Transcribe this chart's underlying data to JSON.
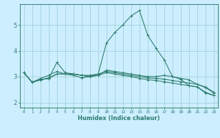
{
  "xlabel": "Humidex (Indice chaleur)",
  "x": [
    0,
    1,
    2,
    3,
    4,
    5,
    6,
    7,
    8,
    9,
    10,
    11,
    12,
    13,
    14,
    15,
    16,
    17,
    18,
    19,
    20,
    21,
    22,
    23
  ],
  "lines": [
    {
      "y": [
        3.15,
        2.78,
        2.88,
        2.93,
        3.1,
        3.1,
        3.1,
        3.05,
        3.05,
        3.1,
        4.3,
        4.7,
        5.0,
        5.35,
        5.55,
        4.6,
        4.1,
        3.65,
        3.0,
        2.93,
        2.88,
        2.7,
        2.58,
        2.37
      ],
      "color": "#2e7d6e",
      "linewidth": 1.0,
      "marker": "+"
    },
    {
      "y": [
        3.15,
        2.78,
        2.88,
        2.93,
        3.55,
        3.15,
        3.1,
        3.05,
        3.0,
        3.05,
        3.25,
        3.2,
        3.15,
        3.1,
        3.05,
        3.0,
        3.0,
        3.05,
        3.0,
        2.9,
        2.65,
        2.6,
        2.37,
        2.27
      ],
      "color": "#2e7d6e",
      "linewidth": 1.0,
      "marker": "+"
    },
    {
      "y": [
        3.15,
        2.78,
        2.93,
        3.05,
        3.2,
        3.1,
        3.05,
        2.95,
        3.0,
        3.1,
        3.2,
        3.15,
        3.1,
        3.05,
        3.0,
        2.95,
        2.93,
        2.9,
        2.85,
        2.8,
        2.75,
        2.7,
        2.6,
        2.4
      ],
      "color": "#2e7d6e",
      "linewidth": 1.0,
      "marker": "+"
    },
    {
      "y": [
        3.15,
        2.78,
        2.88,
        2.95,
        3.1,
        3.1,
        3.1,
        3.05,
        3.0,
        3.05,
        3.15,
        3.1,
        3.05,
        3.0,
        2.93,
        2.88,
        2.85,
        2.8,
        2.75,
        2.7,
        2.65,
        2.6,
        2.4,
        2.27
      ],
      "color": "#2e7d6e",
      "linewidth": 1.0,
      "marker": "+"
    }
  ],
  "background_color": "#cceeff",
  "grid_color": "#99cccc",
  "axis_color": "#2e7d6e",
  "text_color": "#2e7d6e",
  "ylim": [
    1.8,
    5.8
  ],
  "xlim": [
    -0.5,
    23.5
  ],
  "yticks": [
    2,
    3,
    4,
    5
  ],
  "xticks": [
    0,
    1,
    2,
    3,
    4,
    5,
    6,
    7,
    8,
    9,
    10,
    11,
    12,
    13,
    14,
    15,
    16,
    17,
    18,
    19,
    20,
    21,
    22,
    23
  ],
  "figsize": [
    3.2,
    2.0
  ],
  "dpi": 100
}
